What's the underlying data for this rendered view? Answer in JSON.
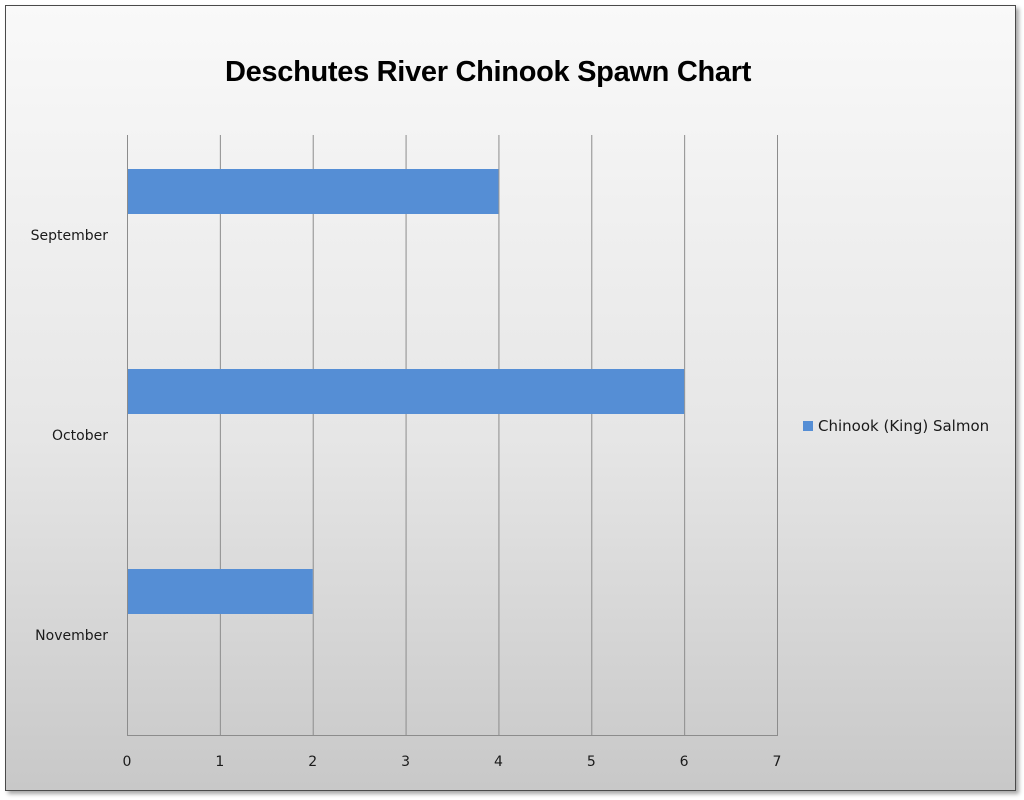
{
  "chart_data": {
    "type": "bar",
    "orientation": "horizontal",
    "title": "Deschutes River Chinook Spawn Chart",
    "xlabel": "",
    "ylabel": "",
    "categories": [
      "September",
      "October",
      "November"
    ],
    "series": [
      {
        "name": "Chinook (King) Salmon",
        "values": [
          4,
          6,
          2
        ],
        "color": "#558ed5"
      }
    ],
    "xlim": [
      0,
      7
    ],
    "x_ticks": [
      "0",
      "1",
      "2",
      "3",
      "4",
      "5",
      "6",
      "7"
    ],
    "grid": "vertical",
    "legend_position": "right"
  }
}
